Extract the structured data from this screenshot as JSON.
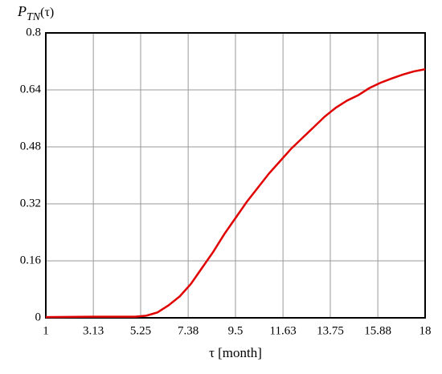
{
  "chart_data": {
    "type": "line",
    "ylabel": {
      "main": "P",
      "sub": "TN",
      "arg": "(τ)"
    },
    "xlabel": "τ [month]",
    "x": [
      1,
      3,
      5,
      5.5,
      6,
      6.5,
      7,
      7.5,
      8,
      8.5,
      9,
      9.5,
      10,
      10.5,
      11,
      11.5,
      12,
      12.5,
      13,
      13.5,
      14,
      14.5,
      15,
      15.5,
      16,
      16.5,
      17,
      17.5,
      18
    ],
    "series": [
      {
        "color": "#e00000",
        "values": [
          0.002,
          0.003,
          0.003,
          0.006,
          0.015,
          0.035,
          0.06,
          0.095,
          0.14,
          0.185,
          0.235,
          0.28,
          0.325,
          0.365,
          0.405,
          0.44,
          0.475,
          0.505,
          0.535,
          0.565,
          0.59,
          0.61,
          0.625,
          0.645,
          0.66,
          0.672,
          0.683,
          0.692,
          0.698
        ]
      }
    ],
    "xlim": [
      1,
      18
    ],
    "xticks": [
      1,
      3.13,
      5.25,
      7.38,
      9.5,
      11.63,
      13.75,
      15.88,
      18
    ],
    "ylim": [
      0,
      0.8
    ],
    "yticks": [
      0,
      0.16,
      0.32,
      0.48,
      0.64,
      0.8
    ],
    "grid": true
  }
}
